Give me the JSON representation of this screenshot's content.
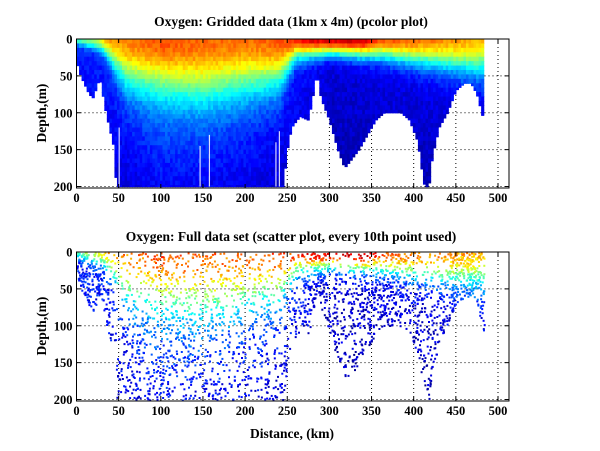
{
  "chart_data": [
    {
      "type": "heatmap",
      "title": "Oxygen: Gridded data (1km x 4m) (pcolor plot)",
      "xlabel": "",
      "ylabel": "Depth,(m)",
      "xlim": [
        0,
        513
      ],
      "ylim": [
        0,
        202
      ],
      "y_reversed": true,
      "xticks": [
        "0",
        "50",
        "100",
        "150",
        "200",
        "250",
        "300",
        "350",
        "400",
        "450",
        "500"
      ],
      "yticks": [
        "0",
        "50",
        "100",
        "150",
        "200"
      ],
      "grid": "dotted",
      "colormap": "jet",
      "grid_resolution": {
        "dx_km": 1,
        "dz_m": 4
      },
      "bottom_depth_profile": {
        "distance_km": [
          0,
          5,
          15,
          20,
          25,
          28,
          35,
          45,
          47,
          245,
          250,
          255,
          265,
          275,
          280,
          285,
          290,
          300,
          310,
          318,
          325,
          335,
          345,
          355,
          365,
          385,
          395,
          405,
          410,
          413,
          418,
          422,
          430,
          440,
          450,
          460,
          468,
          475,
          483
        ],
        "depth_m": [
          30,
          50,
          75,
          80,
          60,
          55,
          100,
          150,
          200,
          200,
          150,
          120,
          105,
          110,
          80,
          45,
          80,
          110,
          150,
          175,
          165,
          150,
          130,
          110,
          100,
          100,
          110,
          140,
          180,
          200,
          200,
          160,
          120,
          100,
          70,
          60,
          60,
          75,
          110
        ]
      },
      "surface_oxygen_level": {
        "distance_km": [
          0,
          20,
          40,
          100,
          200,
          250,
          280,
          340,
          360,
          420,
          450,
          483
        ],
        "level": [
          0.45,
          0.55,
          0.72,
          0.8,
          0.76,
          0.8,
          0.9,
          0.93,
          0.8,
          0.75,
          0.72,
          0.68
        ]
      },
      "surface_layer_depth_m": {
        "distance_km": [
          0,
          30,
          60,
          150,
          240,
          260,
          300,
          360,
          420,
          450,
          483
        ],
        "depth_m": [
          8,
          15,
          60,
          75,
          60,
          25,
          20,
          25,
          35,
          40,
          45
        ]
      },
      "deep_oxygen_level": {
        "distance_km": [
          0,
          40,
          100,
          200,
          250,
          300,
          400,
          483
        ],
        "level": [
          0.15,
          0.18,
          0.3,
          0.25,
          0.18,
          0.1,
          0.12,
          0.15
        ]
      }
    },
    {
      "type": "scatter",
      "title": "Oxygen: Full data set (scatter plot, every 10th point used)",
      "xlabel": "Distance, (km)",
      "ylabel": "Depth,(m)",
      "xlim": [
        0,
        513
      ],
      "ylim": [
        0,
        202
      ],
      "y_reversed": true,
      "xticks": [
        "0",
        "50",
        "100",
        "150",
        "200",
        "250",
        "300",
        "350",
        "400",
        "450",
        "500"
      ],
      "yticks": [
        "0",
        "50",
        "100",
        "150",
        "200"
      ],
      "grid": "dotted",
      "colormap": "jet"
    }
  ]
}
